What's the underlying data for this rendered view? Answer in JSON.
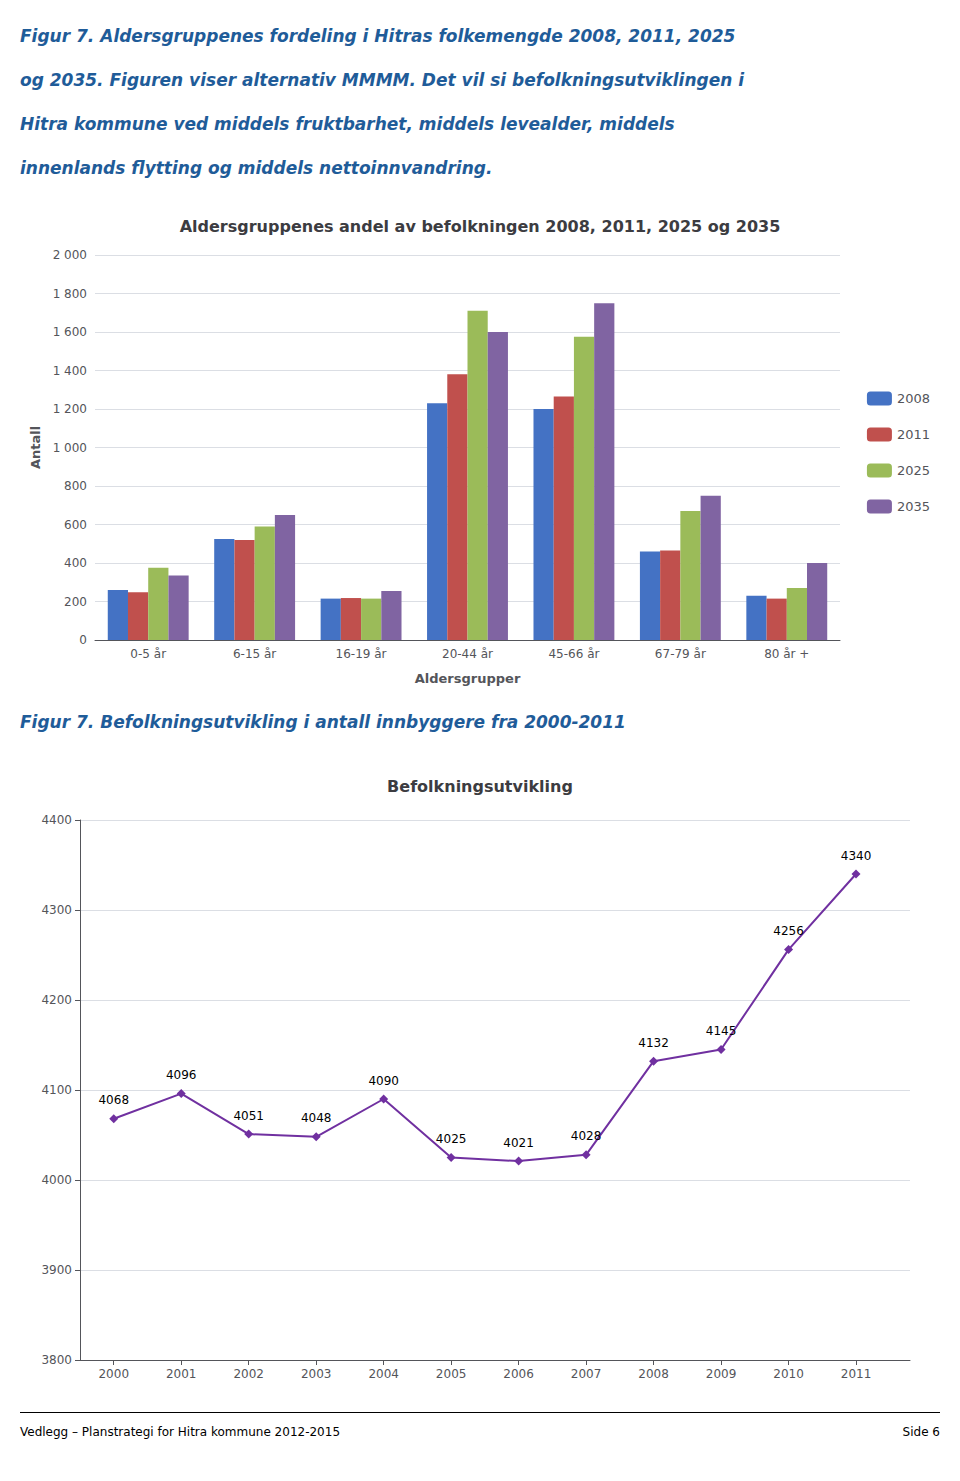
{
  "chart_data": [
    {
      "type": "bar",
      "title": "Aldersgruppenes andel av befolkningen 2008, 2011, 2025 og 2035",
      "xlabel": "Aldersgrupper",
      "ylabel": "Antall",
      "annotations": [
        "Figur 7. Aldersgruppenes fordeling i Hitras folkemengde 2008, 2011, 2025",
        "og 2035. Figuren viser alternativ MMMM. Det vil si befolkningsutviklingen i",
        "Hitra kommune ved middels fruktbarhet, middels levealder, middels",
        "innenlands flytting og middels nettoinnvandring."
      ],
      "categories": [
        "0-5 år",
        "6-15 år",
        "16-19 år",
        "20-44 år",
        "45-66 år",
        "67-79 år",
        "80 år +"
      ],
      "series": [
        {
          "name": "2008",
          "color": "#4472C4",
          "values": [
            260,
            525,
            215,
            1230,
            1200,
            460,
            230
          ]
        },
        {
          "name": "2011",
          "color": "#C0504D",
          "values": [
            248,
            520,
            218,
            1380,
            1265,
            465,
            215
          ]
        },
        {
          "name": "2025",
          "color": "#9BBB59",
          "values": [
            375,
            590,
            215,
            1710,
            1575,
            670,
            270
          ]
        },
        {
          "name": "2035",
          "color": "#8064A2",
          "values": [
            335,
            650,
            255,
            1600,
            1750,
            750,
            400
          ]
        }
      ],
      "ylim": [
        0,
        2000
      ],
      "yticks": [
        0,
        200,
        400,
        600,
        800,
        {
          "value": 1000,
          "label": "1 000"
        },
        {
          "value": 1200,
          "label": "1 200"
        },
        {
          "value": 1400,
          "label": "1 400"
        },
        {
          "value": 1600,
          "label": "1 600"
        },
        {
          "value": 1800,
          "label": "1 800"
        },
        {
          "value": 2000,
          "label": "2 000"
        }
      ],
      "grid": true,
      "legend": "right"
    },
    {
      "type": "line",
      "title": "Befolkningsutvikling",
      "annotations": [
        "Figur 7. Befolkningsutvikling i antall innbyggere fra 2000-2011",
        "Vedlegg – Planstrategi for Hitra kommune 2012-2015",
        "Side 6"
      ],
      "x": [
        2000,
        2001,
        2002,
        2003,
        2004,
        2005,
        2006,
        2007,
        2008,
        2009,
        2010,
        2011
      ],
      "values": [
        4068,
        4096,
        4051,
        4048,
        4090,
        4025,
        4021,
        4028,
        4132,
        4145,
        4256,
        4340
      ],
      "color": "#7030A0",
      "marker": "diamond",
      "xlim": [
        1999.5,
        2011.8
      ],
      "xticks": [
        2000,
        2001,
        2002,
        2003,
        2004,
        2005,
        2006,
        2007,
        2008,
        2009,
        2010,
        2011
      ],
      "ylim": [
        3800,
        4400
      ],
      "yticks": [
        3800,
        3900,
        4000,
        4100,
        4200,
        4300,
        4400
      ],
      "grid": true,
      "data_labels": true
    }
  ]
}
